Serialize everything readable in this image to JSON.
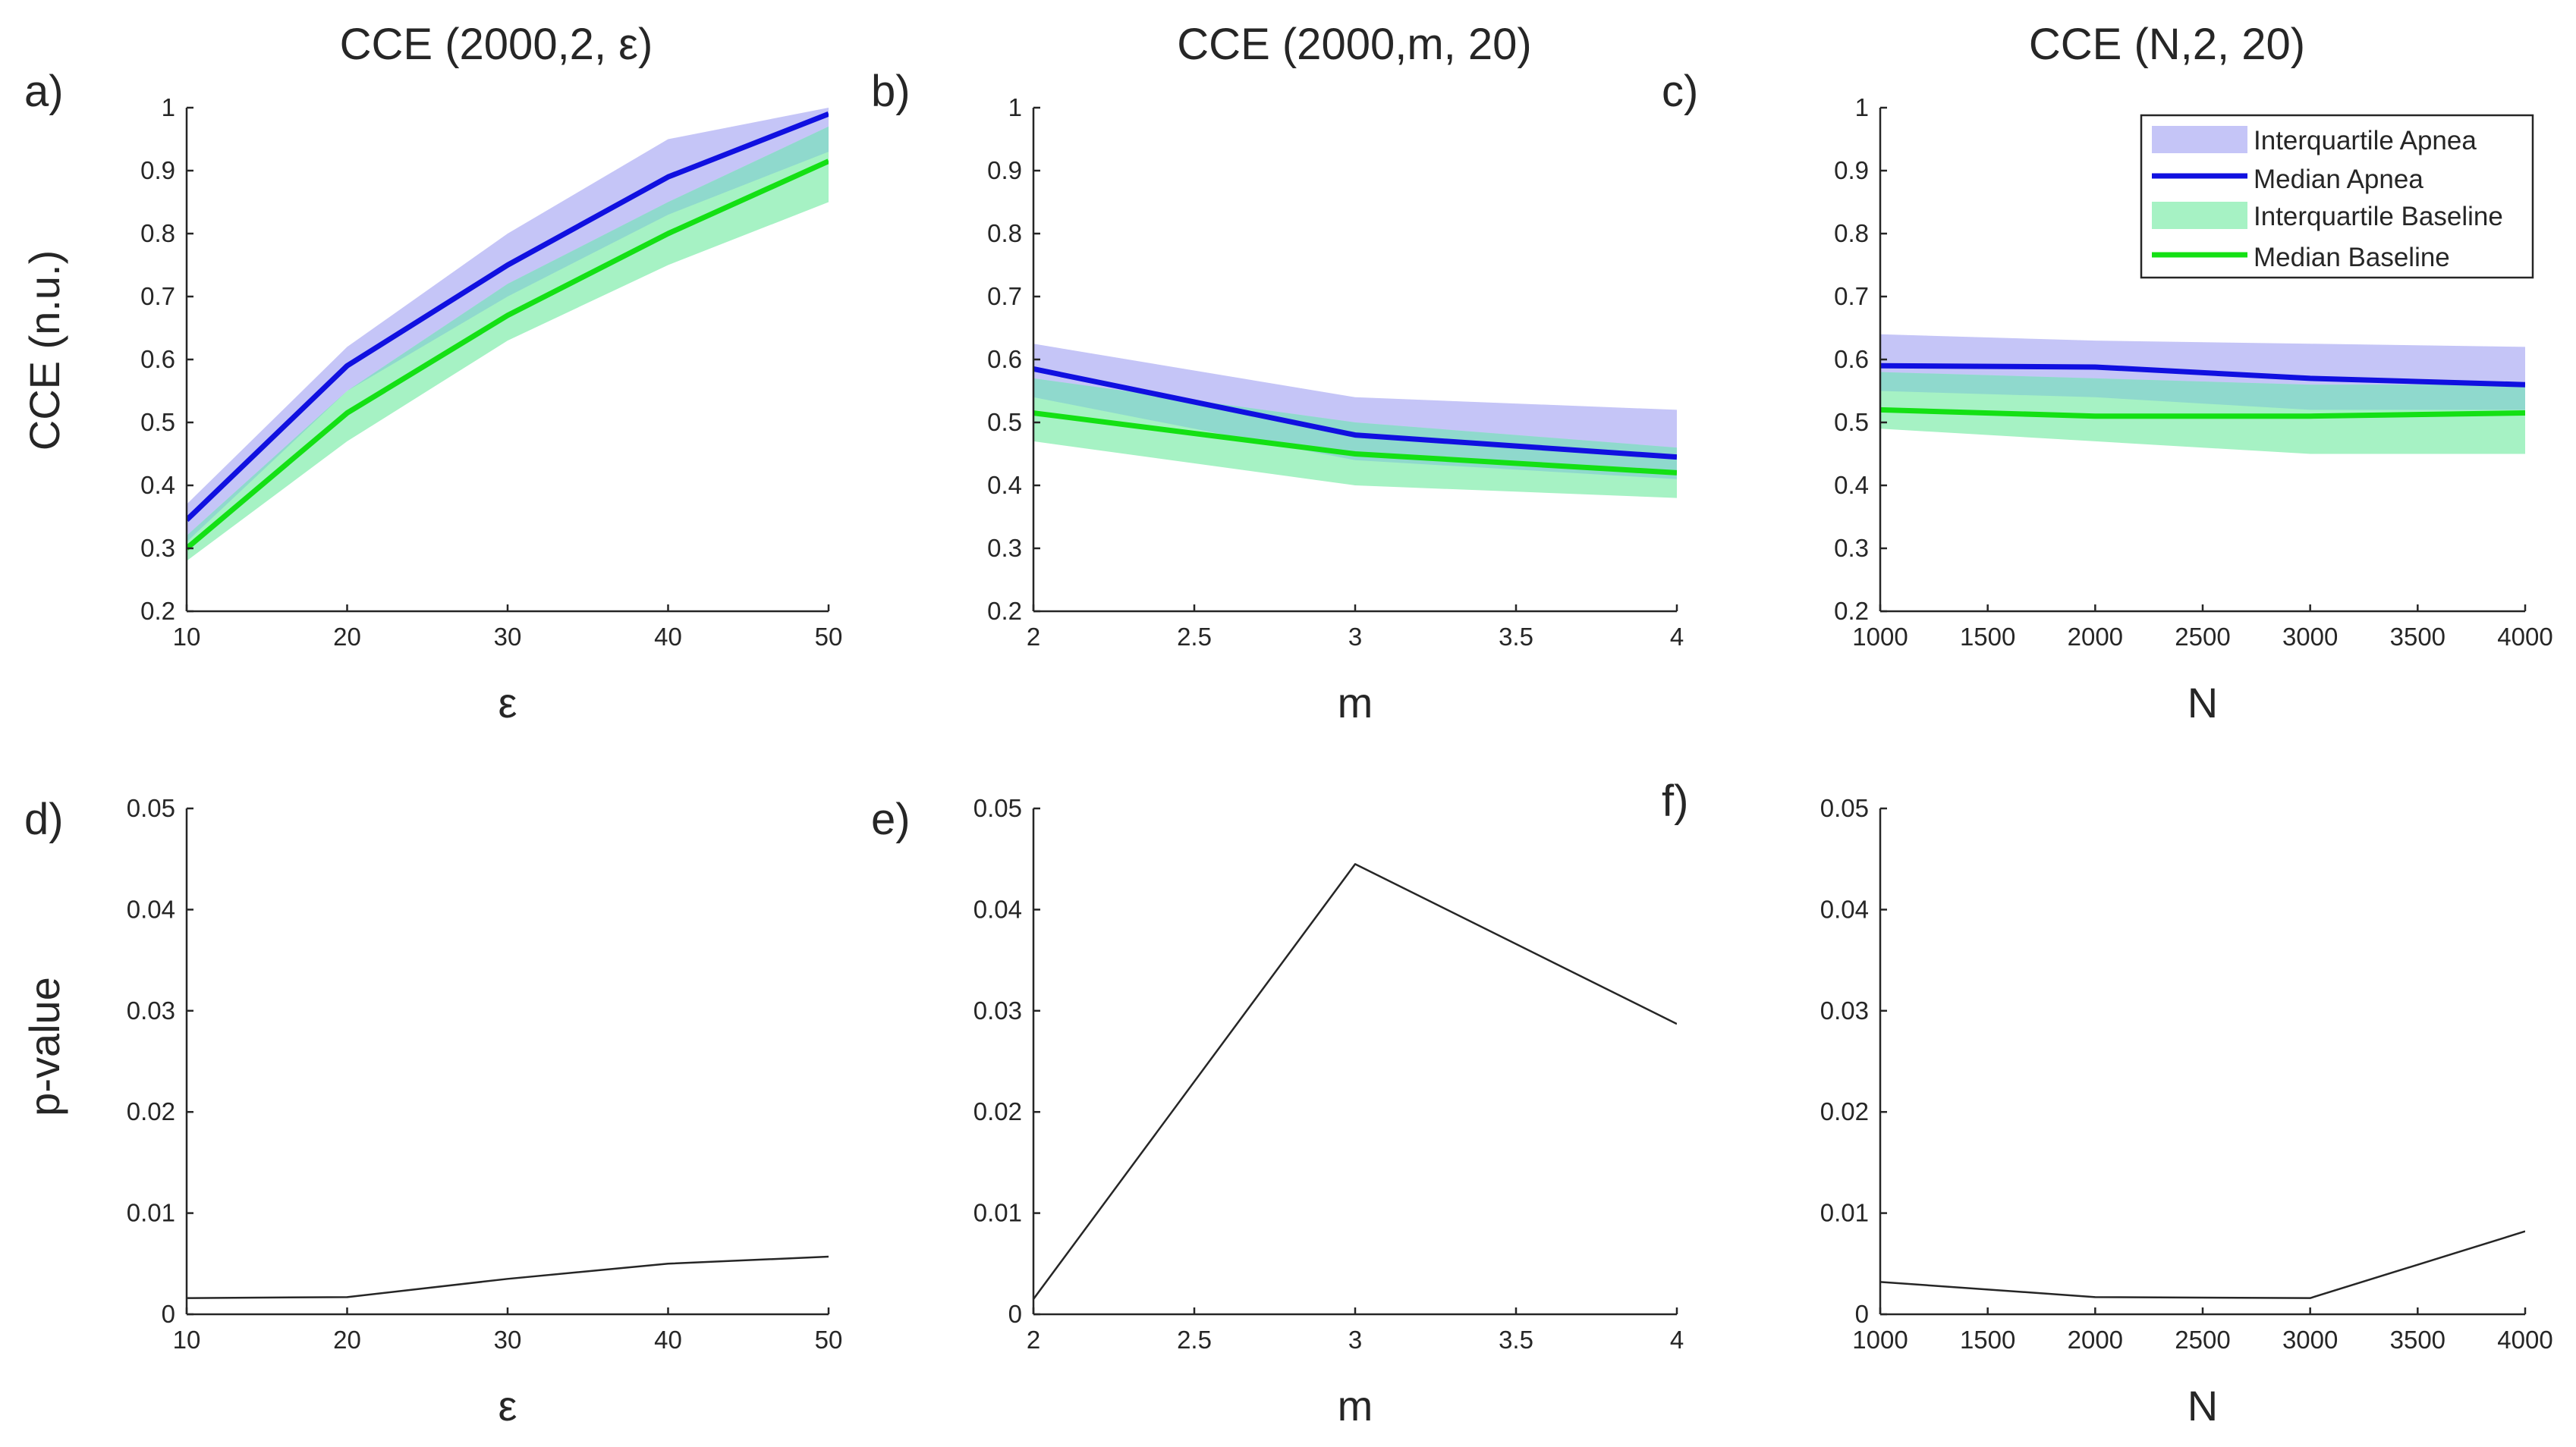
{
  "figure": {
    "ylabel_top": "CCE (n.u.)",
    "ylabel_bottom": "p-value"
  },
  "colors": {
    "apnea_band": "#c5c5f7",
    "apnea_line": "#1010e0",
    "baseline_band": "#a6f2c4",
    "baseline_line": "#14e014",
    "overlap_band": "#8fd9cd",
    "pvalue_line": "#262626"
  },
  "legend": {
    "placement": "top-right",
    "entries": [
      {
        "label": "Interquartile Apnea",
        "kind": "band",
        "color": "#c5c5f7"
      },
      {
        "label": "Median Apnea",
        "kind": "line",
        "color": "#1010e0"
      },
      {
        "label": "Interquartile Baseline",
        "kind": "band",
        "color": "#a6f2c4"
      },
      {
        "label": "Median Baseline",
        "kind": "line",
        "color": "#14e014"
      }
    ]
  },
  "chart_data": [
    {
      "id": "a",
      "label": "a)",
      "type": "area",
      "title": "CCE (2000,2, ε)",
      "xlabel": "ε",
      "ylabel": "CCE (n.u.)",
      "xlim": [
        10,
        50
      ],
      "ylim": [
        0.2,
        1
      ],
      "xticks": [
        "10",
        "20",
        "30",
        "40",
        "50"
      ],
      "yticks": [
        "0.2",
        "0.3",
        "0.4",
        "0.5",
        "0.6",
        "0.7",
        "0.8",
        "0.9",
        "1"
      ],
      "x": [
        10,
        20,
        30,
        40,
        50
      ],
      "series": [
        {
          "name": "Interquartile Apnea",
          "kind": "band",
          "lower": [
            0.31,
            0.55,
            0.7,
            0.83,
            0.93
          ],
          "upper": [
            0.37,
            0.62,
            0.8,
            0.95,
            1.0
          ]
        },
        {
          "name": "Interquartile Baseline",
          "kind": "band",
          "lower": [
            0.28,
            0.47,
            0.63,
            0.75,
            0.85
          ],
          "upper": [
            0.32,
            0.55,
            0.72,
            0.85,
            0.97
          ]
        },
        {
          "name": "Median Apnea",
          "kind": "line",
          "values": [
            0.345,
            0.59,
            0.75,
            0.89,
            0.99
          ]
        },
        {
          "name": "Median Baseline",
          "kind": "line",
          "values": [
            0.3,
            0.515,
            0.67,
            0.8,
            0.915
          ]
        }
      ]
    },
    {
      "id": "b",
      "label": "b)",
      "type": "area",
      "title": "CCE (2000,m, 20)",
      "xlabel": "m",
      "ylabel": "",
      "xlim": [
        2,
        4
      ],
      "ylim": [
        0.2,
        1
      ],
      "xticks": [
        "2",
        "2.5",
        "3",
        "3.5",
        "4"
      ],
      "yticks": [
        "0.2",
        "0.3",
        "0.4",
        "0.5",
        "0.6",
        "0.7",
        "0.8",
        "0.9",
        "1"
      ],
      "x": [
        2,
        3,
        4
      ],
      "series": [
        {
          "name": "Interquartile Apnea",
          "kind": "band",
          "lower": [
            0.54,
            0.44,
            0.41
          ],
          "upper": [
            0.625,
            0.54,
            0.52
          ]
        },
        {
          "name": "Interquartile Baseline",
          "kind": "band",
          "lower": [
            0.47,
            0.4,
            0.38
          ],
          "upper": [
            0.57,
            0.5,
            0.46
          ]
        },
        {
          "name": "Median Apnea",
          "kind": "line",
          "values": [
            0.585,
            0.48,
            0.445
          ]
        },
        {
          "name": "Median Baseline",
          "kind": "line",
          "values": [
            0.515,
            0.45,
            0.42
          ]
        }
      ]
    },
    {
      "id": "c",
      "label": "c)",
      "type": "area",
      "title": "CCE (N,2, 20)",
      "xlabel": "N",
      "ylabel": "",
      "xlim": [
        1000,
        4000
      ],
      "ylim": [
        0.2,
        1
      ],
      "xticks": [
        "1000",
        "1500",
        "2000",
        "2500",
        "3000",
        "3500",
        "4000"
      ],
      "yticks": [
        "0.2",
        "0.3",
        "0.4",
        "0.5",
        "0.6",
        "0.7",
        "0.8",
        "0.9",
        "1"
      ],
      "x": [
        1000,
        2000,
        3000,
        4000
      ],
      "series": [
        {
          "name": "Interquartile Apnea",
          "kind": "band",
          "lower": [
            0.55,
            0.54,
            0.52,
            0.52
          ],
          "upper": [
            0.64,
            0.63,
            0.625,
            0.62
          ]
        },
        {
          "name": "Interquartile Baseline",
          "kind": "band",
          "lower": [
            0.49,
            0.47,
            0.45,
            0.45
          ],
          "upper": [
            0.58,
            0.57,
            0.56,
            0.56
          ]
        },
        {
          "name": "Median Apnea",
          "kind": "line",
          "values": [
            0.59,
            0.588,
            0.57,
            0.56
          ]
        },
        {
          "name": "Median Baseline",
          "kind": "line",
          "values": [
            0.52,
            0.51,
            0.51,
            0.515
          ]
        }
      ]
    },
    {
      "id": "d",
      "label": "d)",
      "type": "line",
      "title": "",
      "xlabel": "ε",
      "ylabel": "p-value",
      "xlim": [
        10,
        50
      ],
      "ylim": [
        0,
        0.05
      ],
      "xticks": [
        "10",
        "20",
        "30",
        "40",
        "50"
      ],
      "yticks": [
        "0",
        "0.01",
        "0.02",
        "0.03",
        "0.04",
        "0.05"
      ],
      "x": [
        10,
        20,
        30,
        40,
        50
      ],
      "series": [
        {
          "kind": "line",
          "values": [
            0.0016,
            0.0017,
            0.0035,
            0.005,
            0.0057
          ]
        }
      ]
    },
    {
      "id": "e",
      "label": "e)",
      "type": "line",
      "title": "",
      "xlabel": "m",
      "ylabel": "",
      "xlim": [
        2,
        4
      ],
      "ylim": [
        0,
        0.05
      ],
      "xticks": [
        "2",
        "2.5",
        "3",
        "3.5",
        "4"
      ],
      "yticks": [
        "0",
        "0.01",
        "0.02",
        "0.03",
        "0.04",
        "0.05"
      ],
      "x": [
        2,
        3,
        4
      ],
      "series": [
        {
          "kind": "line",
          "values": [
            0.0015,
            0.0445,
            0.0287
          ]
        }
      ]
    },
    {
      "id": "f",
      "label": "f)",
      "type": "line",
      "title": "",
      "xlabel": "N",
      "ylabel": "",
      "xlim": [
        1000,
        4000
      ],
      "ylim": [
        0,
        0.05
      ],
      "xticks": [
        "1000",
        "1500",
        "2000",
        "2500",
        "3000",
        "3500",
        "4000"
      ],
      "yticks": [
        "0",
        "0.01",
        "0.02",
        "0.03",
        "0.04",
        "0.05"
      ],
      "x": [
        1000,
        2000,
        3000,
        4000
      ],
      "series": [
        {
          "kind": "line",
          "values": [
            0.0032,
            0.0017,
            0.0016,
            0.0082
          ]
        }
      ]
    }
  ]
}
